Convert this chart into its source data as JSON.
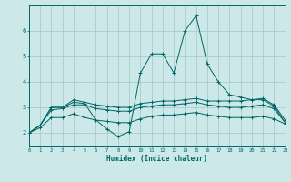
{
  "xlabel": "Humidex (Indice chaleur)",
  "bg_color": "#cce8e8",
  "grid_color": "#aacccc",
  "line_color": "#006666",
  "xmin": 0,
  "xmax": 23,
  "ymin": 1.5,
  "ymax": 7.0,
  "lines": [
    {
      "x": [
        0,
        1,
        2,
        3,
        4,
        5,
        6,
        7,
        8,
        9,
        10,
        11,
        12,
        13,
        14,
        15,
        16,
        17,
        18,
        19,
        20,
        21,
        22,
        23
      ],
      "y": [
        2.0,
        2.3,
        3.0,
        3.0,
        3.2,
        3.15,
        2.5,
        2.15,
        1.85,
        2.05,
        4.35,
        5.1,
        5.1,
        4.35,
        6.0,
        6.6,
        4.7,
        4.0,
        3.5,
        3.4,
        3.3,
        3.3,
        3.05,
        2.4
      ]
    },
    {
      "x": [
        0,
        1,
        2,
        3,
        4,
        5,
        6,
        7,
        8,
        9,
        10,
        11,
        12,
        13,
        14,
        15,
        16,
        17,
        18,
        19,
        20,
        21,
        22,
        23
      ],
      "y": [
        2.0,
        2.3,
        3.0,
        3.0,
        3.3,
        3.2,
        3.1,
        3.05,
        3.0,
        3.0,
        3.15,
        3.2,
        3.25,
        3.25,
        3.3,
        3.35,
        3.25,
        3.25,
        3.25,
        3.25,
        3.3,
        3.35,
        3.1,
        2.5
      ]
    },
    {
      "x": [
        0,
        1,
        2,
        3,
        4,
        5,
        6,
        7,
        8,
        9,
        10,
        11,
        12,
        13,
        14,
        15,
        16,
        17,
        18,
        19,
        20,
        21,
        22,
        23
      ],
      "y": [
        2.0,
        2.3,
        2.9,
        2.95,
        3.1,
        3.1,
        2.95,
        2.9,
        2.85,
        2.85,
        3.0,
        3.05,
        3.1,
        3.1,
        3.15,
        3.2,
        3.1,
        3.05,
        3.0,
        3.0,
        3.05,
        3.1,
        2.95,
        2.4
      ]
    },
    {
      "x": [
        0,
        1,
        2,
        3,
        4,
        5,
        6,
        7,
        8,
        9,
        10,
        11,
        12,
        13,
        14,
        15,
        16,
        17,
        18,
        19,
        20,
        21,
        22,
        23
      ],
      "y": [
        2.0,
        2.2,
        2.6,
        2.6,
        2.75,
        2.6,
        2.5,
        2.45,
        2.4,
        2.4,
        2.55,
        2.65,
        2.7,
        2.7,
        2.75,
        2.8,
        2.7,
        2.65,
        2.6,
        2.6,
        2.6,
        2.65,
        2.55,
        2.35
      ]
    }
  ],
  "yticks": [
    2,
    3,
    4,
    5,
    6
  ],
  "xticks": [
    0,
    1,
    2,
    3,
    4,
    5,
    6,
    7,
    8,
    9,
    10,
    11,
    12,
    13,
    14,
    15,
    16,
    17,
    18,
    19,
    20,
    21,
    22,
    23
  ]
}
